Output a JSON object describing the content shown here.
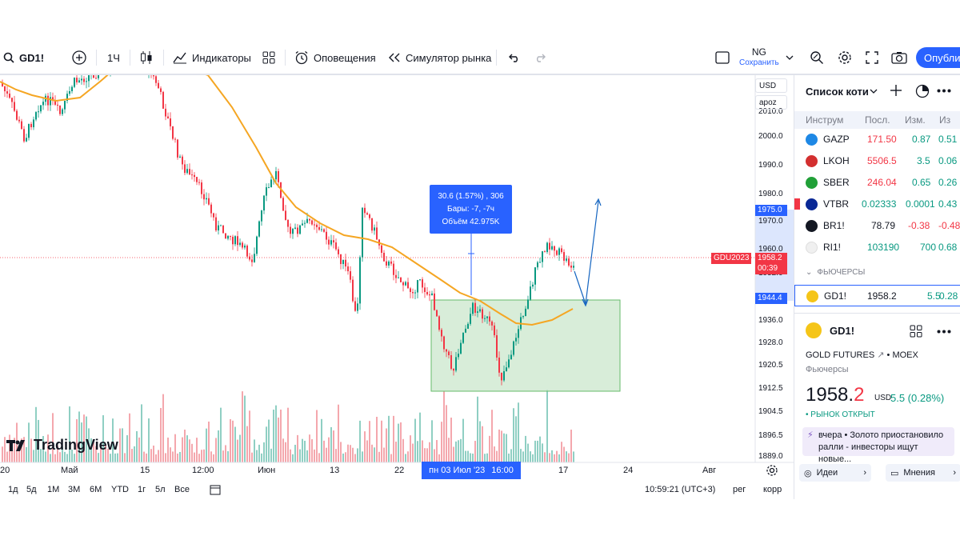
{
  "toolbar": {
    "symbol": "GD1!",
    "interval": "1Ч",
    "indicators_label": "Индикаторы",
    "alerts_label": "Оповещения",
    "replay_label": "Симулятор рынка",
    "layout_name": "NG",
    "save_label": "Сохранить",
    "publish_label": "Опубли"
  },
  "price_scale": {
    "currency": "USD",
    "mode": "apoz",
    "ticks": [
      "2010.0",
      "2000.0",
      "1990.0",
      "1980.0",
      "1970.0",
      "1960.0",
      "1952.0",
      "1944.0",
      "1936.0",
      "1928.0",
      "1920.5",
      "1912.5",
      "1904.5",
      "1896.5",
      "1889.0"
    ],
    "upper_level_label": "1975.0",
    "lower_level_label": "1944.4",
    "contract_label": "GDU2023",
    "current_price_label": "1958.2",
    "countdown_label": "00:39"
  },
  "measure_tooltip": {
    "line1": "30.6 (1.57%) , 306",
    "line2": "Бары: -7, -7ч",
    "line3": "Объём 42.975K"
  },
  "time_axis": {
    "labels": [
      "20",
      "Май",
      "15",
      "12:00",
      "Июн",
      "13",
      "22",
      "17",
      "24",
      "Авг"
    ],
    "highlight_date": "пн 03 Июл '23",
    "highlight_time": "16:00"
  },
  "bottom_bar": {
    "ranges": [
      "1д",
      "5д",
      "1М",
      "3М",
      "6М",
      "YTD",
      "1г",
      "5л",
      "Все"
    ],
    "clock": "10:59:21 (UTC+3)",
    "session": "рег",
    "corr": "корр"
  },
  "brand": {
    "logo_text": "TradingView"
  },
  "watchlist": {
    "title": "Список коти",
    "columns": [
      "Инструм",
      "Посл.",
      "Изм.",
      "Из"
    ],
    "rows": [
      {
        "symbol": "GAZP",
        "last": "171.50",
        "chg": "0.87",
        "chg_pct": "0.51",
        "last_color": "#f23645",
        "chg_color": "#089981",
        "icon_color": "#1e88e5"
      },
      {
        "symbol": "LKOH",
        "last": "5506.5",
        "chg": "3.5",
        "chg_pct": "0.06",
        "last_color": "#f23645",
        "chg_color": "#089981",
        "icon_color": "#d32f2f"
      },
      {
        "symbol": "SBER",
        "last": "246.04",
        "chg": "0.65",
        "chg_pct": "0.26",
        "last_color": "#f23645",
        "chg_color": "#089981",
        "icon_color": "#21a038"
      },
      {
        "symbol": "VTBR",
        "last": "0.02333",
        "chg": "0.0001",
        "chg_pct": "0.43",
        "last_color": "#089981",
        "chg_color": "#089981",
        "icon_color": "#0a2896"
      },
      {
        "symbol": "BR1!",
        "last": "78.79",
        "chg": "-0.38",
        "chg_pct": "-0.48",
        "last_color": "#131722",
        "chg_color": "#f23645",
        "icon_color": "#131722"
      },
      {
        "symbol": "RI1!",
        "last": "103190",
        "chg": "700",
        "chg_pct": "0.68",
        "last_color": "#089981",
        "chg_color": "#089981",
        "icon_color": "#f0f0f0"
      }
    ],
    "section_label": "ФЬЮЧЕРСЫ",
    "active_row": {
      "symbol": "GD1!",
      "last": "1958.2",
      "chg": "5.5",
      "chg_pct": "0.28"
    }
  },
  "detail": {
    "symbol": "GD1!",
    "full_name": "GOLD FUTURES",
    "exchange": "• MOEX",
    "type": "Фьючерсы",
    "price_main": "1958.",
    "price_last_digit": "2",
    "currency": "USD",
    "change": "5.5 (0.28%)",
    "status": "• РЫНОК ОТКРЫТ",
    "news_text": "вчера • Золото приостановило ралли - инвесторы ищут новые...",
    "ideas_label": "Идеи",
    "opinions_label": "Мнения"
  },
  "colors": {
    "accent": "#2962ff",
    "up": "#089981",
    "down": "#f23645",
    "ma_line": "#f5a623",
    "zone_fill": "#c8e6c9"
  }
}
